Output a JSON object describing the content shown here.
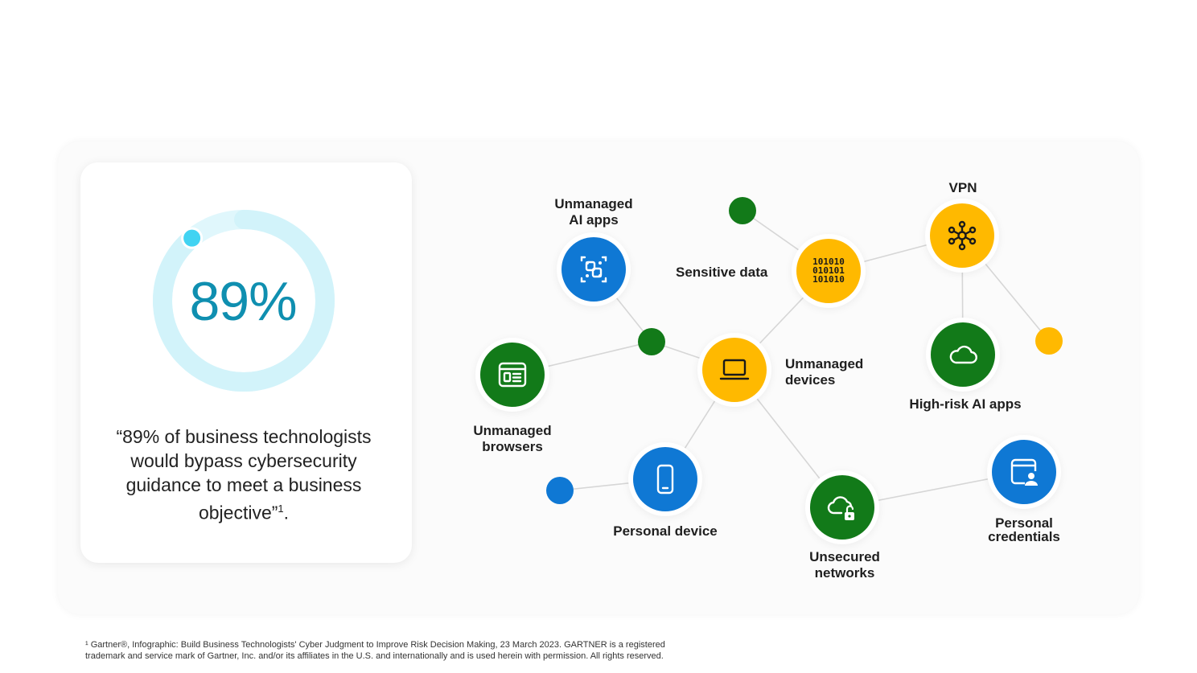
{
  "stat": {
    "value": "89%",
    "progress_percent": 89,
    "quote": "“89% of business technologists would bypass cybersecurity guidance to meet a business objective”",
    "quote_footnote_ref": "1",
    "quote_end": "."
  },
  "network": {
    "colors": {
      "blue": "#0f78d4",
      "green": "#127a19",
      "yellow": "#ffb900"
    },
    "nodes": {
      "ai_apps": {
        "label_line1": "Unmanaged",
        "label_line2": "AI apps",
        "icon": "ai-apps-icon"
      },
      "sensitive": {
        "label": "Sensitive data",
        "icon": "binary-data-icon",
        "binary": [
          "101010",
          "010101",
          "101010"
        ]
      },
      "vpn": {
        "label": "VPN",
        "icon": "network-hub-icon"
      },
      "browsers": {
        "label_line1": "Unmanaged",
        "label_line2": "browsers",
        "icon": "browser-window-icon"
      },
      "devices": {
        "label_line1": "Unmanaged",
        "label_line2": "devices",
        "icon": "laptop-icon"
      },
      "highrisk": {
        "label": "High-risk AI apps",
        "icon": "cloud-icon"
      },
      "personal_device": {
        "label": "Personal device",
        "icon": "smartphone-icon"
      },
      "networks": {
        "label_line1": "Unsecured",
        "label_line2": "networks",
        "icon": "cloud-unlocked-icon"
      },
      "credentials": {
        "label_line1": "Personal",
        "label_line2": "credentials",
        "icon": "credential-window-icon"
      }
    }
  },
  "footnote": {
    "line1": "¹ Gartner®, Infographic: Build Business Technologists' Cyber Judgment to Improve Risk Decision Making, 23 March 2023. GARTNER is a registered",
    "line2": "trademark and service mark of Gartner, Inc. and/or its affiliates in the U.S. and internationally and is used herein with permission. All rights reserved."
  }
}
